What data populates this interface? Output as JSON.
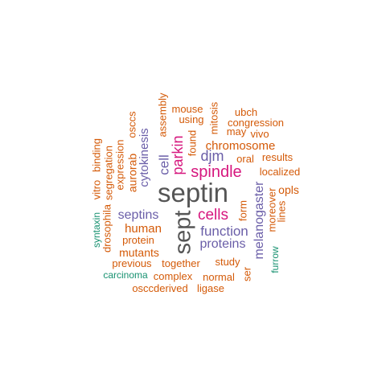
{
  "palette": {
    "gray": "#555555",
    "magenta": "#d6177e",
    "purple": "#6a5ea8",
    "orange": "#d45a08",
    "teal": "#179170"
  },
  "words": [
    {
      "text": "septin",
      "color": "gray"
    },
    {
      "text": "sept",
      "color": "gray"
    },
    {
      "text": "spindle",
      "color": "magenta"
    },
    {
      "text": "cells",
      "color": "magenta"
    },
    {
      "text": "parkin",
      "color": "magenta"
    },
    {
      "text": "septins",
      "color": "purple"
    },
    {
      "text": "function",
      "color": "purple"
    },
    {
      "text": "proteins",
      "color": "purple"
    },
    {
      "text": "cytokinesis",
      "color": "purple"
    },
    {
      "text": "cell",
      "color": "purple"
    },
    {
      "text": "djm",
      "color": "purple"
    },
    {
      "text": "melanogaster",
      "color": "purple"
    },
    {
      "text": "human",
      "color": "orange"
    },
    {
      "text": "protein",
      "color": "orange"
    },
    {
      "text": "mutants",
      "color": "orange"
    },
    {
      "text": "previous",
      "color": "orange"
    },
    {
      "text": "together",
      "color": "orange"
    },
    {
      "text": "study",
      "color": "orange"
    },
    {
      "text": "complex",
      "color": "orange"
    },
    {
      "text": "normal",
      "color": "orange"
    },
    {
      "text": "osccderived",
      "color": "orange"
    },
    {
      "text": "ligase",
      "color": "orange"
    },
    {
      "text": "chromosome",
      "color": "orange"
    },
    {
      "text": "oral",
      "color": "orange"
    },
    {
      "text": "results",
      "color": "orange"
    },
    {
      "text": "localized",
      "color": "orange"
    },
    {
      "text": "opls",
      "color": "orange"
    },
    {
      "text": "mouse",
      "color": "orange"
    },
    {
      "text": "using",
      "color": "orange"
    },
    {
      "text": "ubch",
      "color": "orange"
    },
    {
      "text": "congression",
      "color": "orange"
    },
    {
      "text": "may",
      "color": "orange"
    },
    {
      "text": "vivo",
      "color": "orange"
    },
    {
      "text": "found",
      "color": "orange"
    },
    {
      "text": "mitosis",
      "color": "orange"
    },
    {
      "text": "assembly",
      "color": "orange"
    },
    {
      "text": "osccs",
      "color": "orange"
    },
    {
      "text": "aurorab",
      "color": "orange"
    },
    {
      "text": "expression",
      "color": "orange"
    },
    {
      "text": "segregation",
      "color": "orange"
    },
    {
      "text": "binding",
      "color": "orange"
    },
    {
      "text": "vitro",
      "color": "orange"
    },
    {
      "text": "drosophila",
      "color": "orange"
    },
    {
      "text": "form",
      "color": "orange"
    },
    {
      "text": "ser",
      "color": "orange"
    },
    {
      "text": "moreover",
      "color": "orange"
    },
    {
      "text": "lines",
      "color": "orange"
    },
    {
      "text": "carcinoma",
      "color": "teal"
    },
    {
      "text": "syntaxin",
      "color": "teal"
    },
    {
      "text": "furrow",
      "color": "teal"
    }
  ]
}
